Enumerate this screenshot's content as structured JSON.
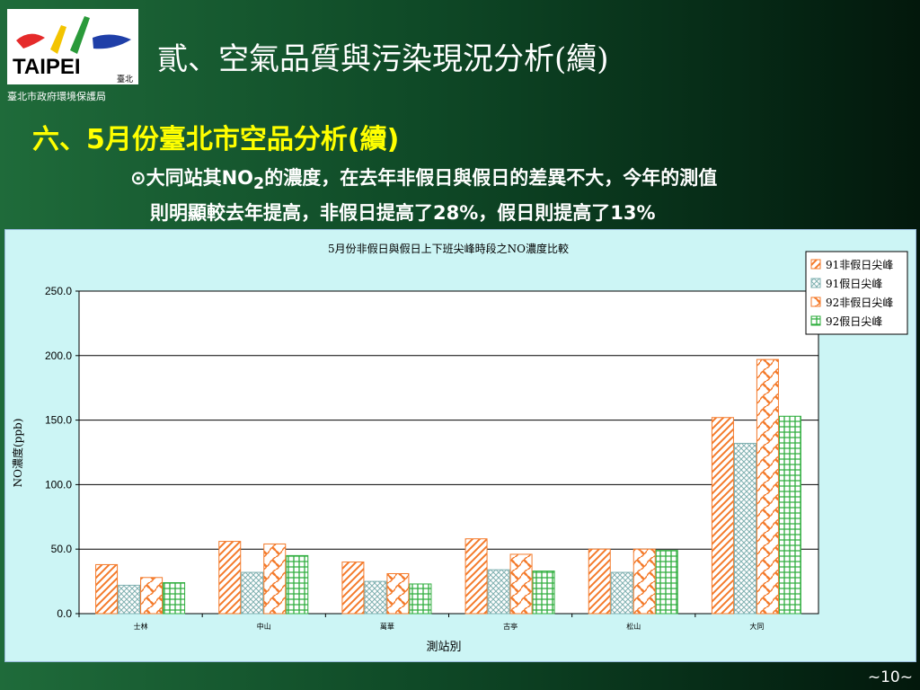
{
  "header": {
    "logo_text": "TAIPEI",
    "logo_sub": "臺北",
    "agency": "臺北市政府環境保護局",
    "title": "貳、空氣品質與污染現況分析(續)"
  },
  "subtitle": "六、5月份臺北市空品分析(續)",
  "bullet": {
    "symbol": "⊙",
    "line1_a": "大同站其NO",
    "line1_sub": "2",
    "line1_b": "的濃度，在去年非假日與假日的差異不大，今年的測值",
    "line2": "則明顯較去年提高，非假日提高了28%，假日則提高了13%"
  },
  "page_number": "~10~",
  "colors": {
    "s1": "#f47a2a",
    "s2": "#7fb0b0",
    "s3": "#f47a2a",
    "s4": "#2fae3e"
  },
  "chart_data": {
    "type": "bar",
    "title": "5月份非假日與假日上下班尖峰時段之NO濃度比較",
    "xlabel": "測站別",
    "ylabel": "NO濃度(ppb)",
    "ylim": [
      0,
      250
    ],
    "yticks": [
      "0.0",
      "50.0",
      "100.0",
      "150.0",
      "200.0",
      "250.0"
    ],
    "categories": [
      "士林",
      "中山",
      "萬華",
      "古亭",
      "松山",
      "大同"
    ],
    "legend_position": "top-right",
    "series": [
      {
        "name": "91非假日尖峰",
        "values": [
          38,
          56,
          40,
          58,
          50,
          152
        ]
      },
      {
        "name": "91假日尖峰",
        "values": [
          22,
          32,
          25,
          34,
          32,
          132
        ]
      },
      {
        "name": "92非假日尖峰",
        "values": [
          28,
          54,
          31,
          46,
          50,
          197
        ]
      },
      {
        "name": "92假日尖峰",
        "values": [
          24,
          45,
          23,
          33,
          49,
          153
        ]
      }
    ]
  }
}
